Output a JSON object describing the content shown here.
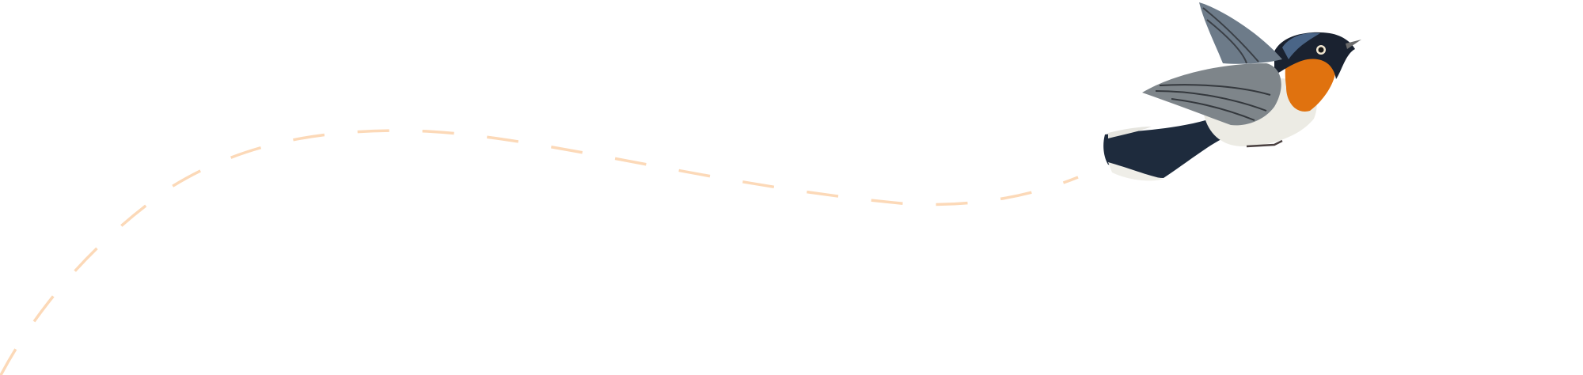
{
  "colors": {
    "background": "#ffffff",
    "flight_path": "#fcd9b8"
  },
  "illustration": {
    "icon": "bird-flying-icon"
  }
}
